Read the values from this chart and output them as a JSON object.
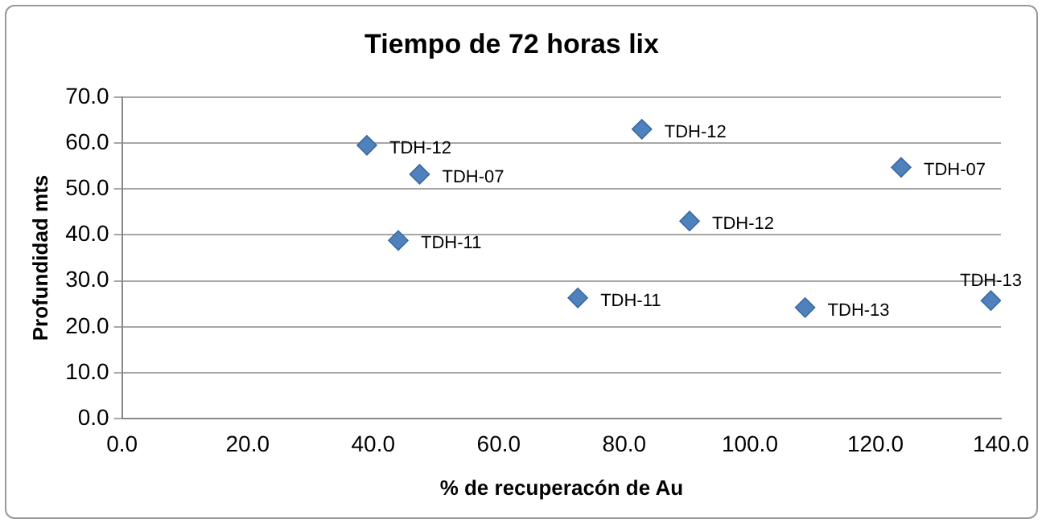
{
  "chart_data": {
    "type": "scatter",
    "title": "Tiempo de 72 horas lix",
    "xlabel": "% de recuperacón de Au",
    "ylabel": "Profundidad mts",
    "x": [
      39.0,
      47.4,
      44.0,
      72.6,
      82.8,
      90.4,
      108.8,
      124.1,
      138.4
    ],
    "series": [
      {
        "color": "#4f81bd",
        "values": [
          59.5,
          53.2,
          38.8,
          26.3,
          63.0,
          43.0,
          24.2,
          54.7,
          25.7
        ],
        "value_labels": [
          "TDH-12",
          "TDH-07",
          "TDH-11",
          "TDH-11",
          "TDH-12",
          "TDH-12",
          "TDH-13",
          "TDH-07",
          "TDH-13"
        ]
      }
    ],
    "xlim": [
      0,
      140
    ],
    "xticks": [
      {
        "value": 0,
        "label": "0.0"
      },
      {
        "value": 20,
        "label": "20.0"
      },
      {
        "value": 40,
        "label": "40.0"
      },
      {
        "value": 60,
        "label": "60.0"
      },
      {
        "value": 80,
        "label": "80.0"
      },
      {
        "value": 100,
        "label": "100.0"
      },
      {
        "value": 120,
        "label": "120.0"
      },
      {
        "value": 140,
        "label": "140.0"
      }
    ],
    "ylim": [
      0,
      70
    ],
    "yticks": [
      {
        "value": 0,
        "label": "0.0"
      },
      {
        "value": 10,
        "label": "10.0"
      },
      {
        "value": 20,
        "label": "20.0"
      },
      {
        "value": 30,
        "label": "30.0"
      },
      {
        "value": 40,
        "label": "40.0"
      },
      {
        "value": 50,
        "label": "50.0"
      },
      {
        "value": 60,
        "label": "60.0"
      },
      {
        "value": 70,
        "label": "70.0"
      }
    ],
    "grid": "y",
    "legend": false,
    "marker": "diamond"
  }
}
